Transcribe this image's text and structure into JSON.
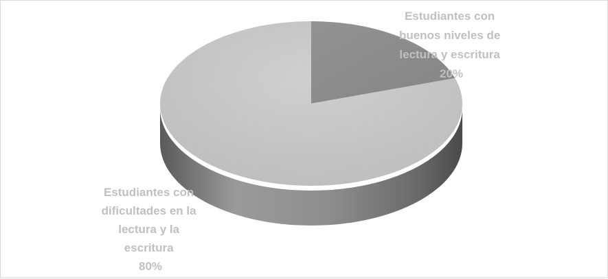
{
  "chart_data": {
    "type": "pie",
    "style": "3d",
    "slices": [
      {
        "label_lines": [
          "Estudiantes con",
          "buenos niveles de",
          "lectura y escritura"
        ],
        "percent_label": "20%",
        "value": 20,
        "color": "#8c8c8c"
      },
      {
        "label_lines": [
          "Estudiantes con",
          "dificultades en la",
          "lectura y la",
          "escritura"
        ],
        "percent_label": "80%",
        "value": 80,
        "color": "#c4c4c4"
      }
    ],
    "label_color": "#c0c0c0",
    "side_color": "#7a7a7a"
  }
}
